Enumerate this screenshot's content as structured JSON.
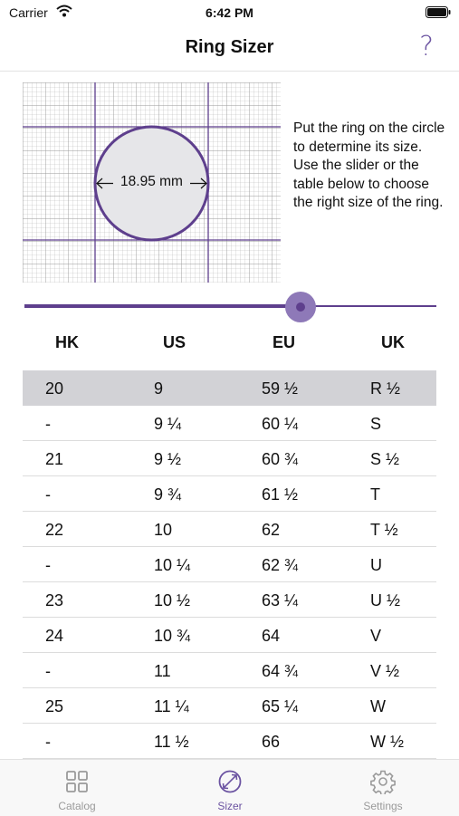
{
  "status_bar": {
    "carrier": "Carrier",
    "time": "6:42 PM"
  },
  "nav": {
    "title": "Ring Sizer",
    "help_icon": "?"
  },
  "sizer": {
    "diameter_label": "18.95 mm",
    "instructions": "Put the ring on the circle to determine its size. Use the slider or the table below to choose the right size of the ring."
  },
  "slider": {
    "value_fraction": 0.67
  },
  "table": {
    "headers": [
      "HK",
      "US",
      "EU",
      "UK"
    ],
    "rows": [
      [
        "20",
        "9",
        "59 ½",
        "R ½"
      ],
      [
        "-",
        "9 ¼",
        "60 ¼",
        "S"
      ],
      [
        "21",
        "9 ½",
        "60 ¾",
        "S ½"
      ],
      [
        "-",
        "9 ¾",
        "61 ½",
        "T"
      ],
      [
        "22",
        "10",
        "62",
        "T ½"
      ],
      [
        "-",
        "10 ¼",
        "62 ¾",
        "U"
      ],
      [
        "23",
        "10 ½",
        "63 ¼",
        "U ½"
      ],
      [
        "24",
        "10 ¾",
        "64",
        "V"
      ],
      [
        "-",
        "11",
        "64 ¾",
        "V ½"
      ],
      [
        "25",
        "11 ¼",
        "65 ¼",
        "W"
      ],
      [
        "-",
        "11 ½",
        "66",
        "W ½"
      ]
    ],
    "selected_index": 0
  },
  "tabs": [
    {
      "label": "Catalog",
      "icon": "grid-icon"
    },
    {
      "label": "Sizer",
      "icon": "ring-sizer-icon"
    },
    {
      "label": "Settings",
      "icon": "gear-icon"
    }
  ],
  "colors": {
    "accent": "#6b53a1",
    "selected_row": "#d2d2d6"
  }
}
